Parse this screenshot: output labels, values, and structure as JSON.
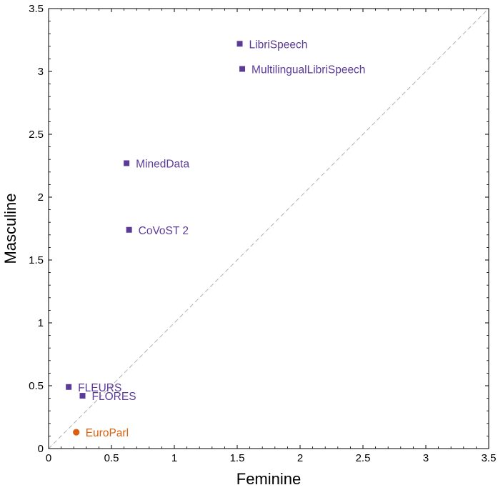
{
  "chart_data": {
    "type": "scatter",
    "xlabel": "Feminine",
    "ylabel": "Masculine",
    "xlim": [
      0,
      3.5
    ],
    "ylim": [
      0,
      3.5
    ],
    "xticks": [
      0,
      0.5,
      1,
      1.5,
      2,
      2.5,
      3,
      3.5
    ],
    "yticks": [
      0,
      0.5,
      1,
      1.5,
      2,
      2.5,
      3,
      3.5
    ],
    "xtick_labels": [
      "0",
      "0.5",
      "1",
      "1.5",
      "2",
      "2.5",
      "3",
      "3.5"
    ],
    "ytick_labels": [
      "0",
      "0.5",
      "1",
      "1.5",
      "2",
      "2.5",
      "3",
      "3.5"
    ],
    "grid": false,
    "diagonal_reference_line": true,
    "points": [
      {
        "label": "LibriSpeech",
        "x": 1.52,
        "y": 3.22,
        "marker": "square",
        "color": "#5c3a98"
      },
      {
        "label": "MultilingualLibriSpeech",
        "x": 1.54,
        "y": 3.02,
        "marker": "square",
        "color": "#5c3a98"
      },
      {
        "label": "MinedData",
        "x": 0.62,
        "y": 2.27,
        "marker": "square",
        "color": "#5c3a98"
      },
      {
        "label": "CoVoST 2",
        "x": 0.64,
        "y": 1.74,
        "marker": "square",
        "color": "#5c3a98"
      },
      {
        "label": "FLEURS",
        "x": 0.16,
        "y": 0.49,
        "marker": "square",
        "color": "#5c3a98"
      },
      {
        "label": "FLORES",
        "x": 0.27,
        "y": 0.42,
        "marker": "square",
        "color": "#5c3a98"
      },
      {
        "label": "EuroParl",
        "x": 0.22,
        "y": 0.13,
        "marker": "circle",
        "color": "#d95f0e"
      }
    ]
  }
}
